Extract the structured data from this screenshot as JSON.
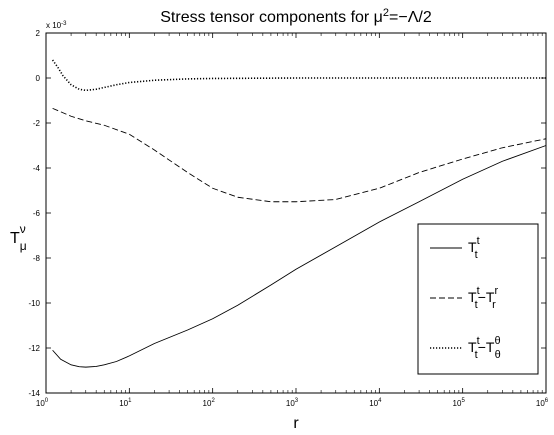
{
  "chart_data": {
    "type": "line",
    "title": "Stress tensor components for μ²=−Λ/2",
    "title_parts": {
      "pre": "Stress tensor components for μ",
      "sup": "2",
      "post": "=−Λ/2"
    },
    "xlabel": "r",
    "ylabel": {
      "base": "T",
      "sup": "ν",
      "sub": "μ"
    },
    "x_scale": "log",
    "xlim": [
      1,
      1000000
    ],
    "ylim": [
      -0.014,
      0.002
    ],
    "y_multiplier_label": "x 10",
    "y_multiplier_exp": "-3",
    "x_ticks": [
      {
        "value": 1,
        "base": "10",
        "exp": "0"
      },
      {
        "value": 10,
        "base": "10",
        "exp": "1"
      },
      {
        "value": 100,
        "base": "10",
        "exp": "2"
      },
      {
        "value": 1000,
        "base": "10",
        "exp": "3"
      },
      {
        "value": 10000,
        "base": "10",
        "exp": "4"
      },
      {
        "value": 100000,
        "base": "10",
        "exp": "5"
      },
      {
        "value": 1000000,
        "base": "10",
        "exp": "6"
      }
    ],
    "y_ticks": [
      {
        "value": 0.002,
        "label": "2"
      },
      {
        "value": 0,
        "label": "0"
      },
      {
        "value": -0.002,
        "label": "-2"
      },
      {
        "value": -0.004,
        "label": "-4"
      },
      {
        "value": -0.006,
        "label": "-6"
      },
      {
        "value": -0.008,
        "label": "-8"
      },
      {
        "value": -0.01,
        "label": "-10"
      },
      {
        "value": -0.012,
        "label": "-12"
      },
      {
        "value": -0.014,
        "label": "-14"
      }
    ],
    "grid": false,
    "legend_position": "bottom-right",
    "series": [
      {
        "legend": {
          "a_base": "T",
          "a_sup": "t",
          "a_sub": "t",
          "op": "",
          "b_base": "",
          "b_sup": "",
          "b_sub": ""
        },
        "style": "solid",
        "color": "#000000",
        "x": [
          1.2,
          1.5,
          2,
          2.5,
          3,
          4,
          5,
          7,
          10,
          20,
          50,
          100,
          200,
          500,
          1000,
          3000,
          10000,
          30000,
          100000,
          300000,
          1000000
        ],
        "y": [
          -0.0121,
          -0.0125,
          -0.01275,
          -0.01283,
          -0.01285,
          -0.01282,
          -0.01275,
          -0.0126,
          -0.01235,
          -0.0118,
          -0.0112,
          -0.0107,
          -0.0101,
          -0.0092,
          -0.0085,
          -0.0075,
          -0.0064,
          -0.0055,
          -0.0045,
          -0.0037,
          -0.003
        ]
      },
      {
        "legend": {
          "a_base": "T",
          "a_sup": "t",
          "a_sub": "t",
          "op": "−",
          "b_base": "T",
          "b_sup": "r",
          "b_sub": "r"
        },
        "style": "dashed",
        "color": "#000000",
        "x": [
          1.2,
          1.5,
          2,
          3,
          5,
          10,
          20,
          50,
          100,
          200,
          500,
          1000,
          3000,
          10000,
          30000,
          100000,
          300000,
          1000000
        ],
        "y": [
          -0.00135,
          -0.0015,
          -0.0017,
          -0.0019,
          -0.0021,
          -0.0025,
          -0.0032,
          -0.0042,
          -0.0049,
          -0.0053,
          -0.0055,
          -0.0055,
          -0.0054,
          -0.0049,
          -0.0042,
          -0.0036,
          -0.0031,
          -0.0027
        ]
      },
      {
        "legend": {
          "a_base": "T",
          "a_sup": "t",
          "a_sub": "t",
          "op": "−",
          "b_base": "T",
          "b_sup": "θ",
          "b_sub": "θ"
        },
        "style": "dotted",
        "color": "#000000",
        "x": [
          1.2,
          1.4,
          1.6,
          2,
          2.5,
          3,
          4,
          5,
          7,
          10,
          20,
          50,
          100,
          1000,
          10000,
          1000000
        ],
        "y": [
          0.0008,
          0.00045,
          0.0001,
          -0.0003,
          -0.0005,
          -0.00055,
          -0.0005,
          -0.00042,
          -0.0003,
          -0.0002,
          -0.0001,
          -4e-05,
          -2e-05,
          0,
          0,
          0
        ]
      }
    ]
  }
}
